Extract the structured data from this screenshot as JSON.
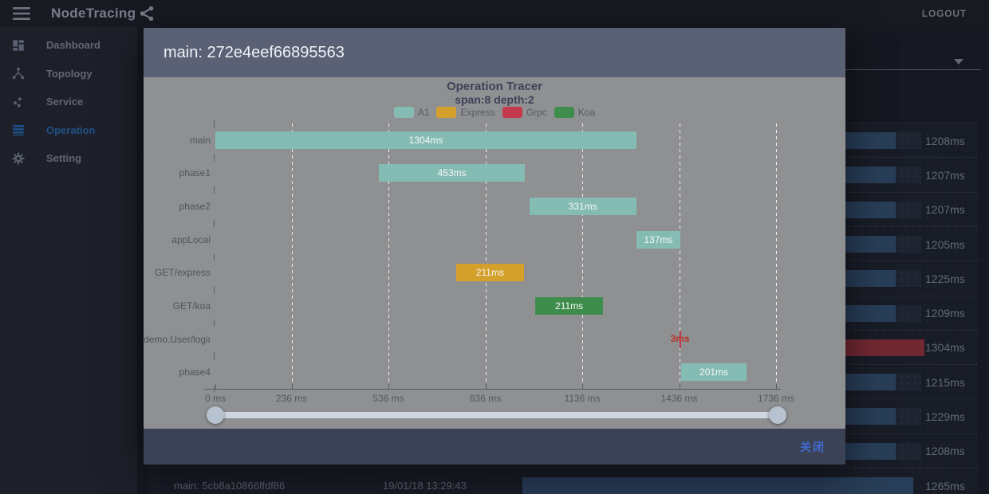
{
  "topbar": {
    "title": "NodeTracing",
    "logout_label": "LOGOUT"
  },
  "sidebar": {
    "items": [
      {
        "id": "dashboard",
        "label": "Dashboard",
        "active": false
      },
      {
        "id": "topology",
        "label": "Topology",
        "active": false
      },
      {
        "id": "service",
        "label": "Service",
        "active": false
      },
      {
        "id": "operation",
        "label": "Operation",
        "active": true
      },
      {
        "id": "setting",
        "label": "Setting",
        "active": false
      }
    ]
  },
  "colors": {
    "accent_blue": "#2d7dd2",
    "bar_blue": "#3d5d84",
    "bar_red": "#b23b47",
    "close_blue": "#3f6cd6"
  },
  "operation_list": {
    "rows": [
      {
        "time": "1208ms",
        "color": "blue"
      },
      {
        "time": "1207ms",
        "color": "blue"
      },
      {
        "time": "1207ms",
        "color": "blue"
      },
      {
        "time": "1205ms",
        "color": "blue"
      },
      {
        "time": "1225ms",
        "color": "blue"
      },
      {
        "time": "1209ms",
        "color": "blue"
      },
      {
        "time": "1304ms",
        "color": "red"
      },
      {
        "time": "1215ms",
        "color": "blue"
      },
      {
        "time": "1229ms",
        "color": "blue"
      },
      {
        "time": "1208ms",
        "color": "blue"
      },
      {
        "time": "1265ms",
        "color": "blue",
        "name": "main: 5cb8a10866ffdf86",
        "timestamp": "19/01/18 13:29:43"
      }
    ]
  },
  "modal": {
    "title": "main: 272e4eef66895563",
    "close_label": "关闭"
  },
  "chart_data": {
    "type": "bar",
    "variant": "gantt-span-tracer",
    "title": "Operation Tracer",
    "subtitle": "span:8 depth:2",
    "legend_position": "top",
    "grid": "dashed-vertical",
    "legend": [
      {
        "name": "A1",
        "color": "#84bcb4"
      },
      {
        "name": "Express",
        "color": "#d4a02b"
      },
      {
        "name": "Grpc",
        "color": "#c4394b"
      },
      {
        "name": "Koa",
        "color": "#3f8d4d"
      }
    ],
    "categories": [
      "main",
      "phase1",
      "phase2",
      "appLocal",
      "GET/express",
      "GET/koa",
      "demo.User/login",
      "phase4"
    ],
    "spans": [
      {
        "label": "main",
        "series": "A1",
        "start_ms": 0,
        "duration_ms": 1304,
        "text": "1304ms"
      },
      {
        "label": "phase1",
        "series": "A1",
        "start_ms": 506,
        "duration_ms": 453,
        "text": "453ms"
      },
      {
        "label": "phase2",
        "series": "A1",
        "start_ms": 972,
        "duration_ms": 331,
        "text": "331ms"
      },
      {
        "label": "appLocal",
        "series": "A1",
        "start_ms": 1303,
        "duration_ms": 137,
        "text": "137ms"
      },
      {
        "label": "GET/express",
        "series": "Express",
        "start_ms": 745,
        "duration_ms": 211,
        "text": "211ms"
      },
      {
        "label": "GET/koa",
        "series": "Koa",
        "start_ms": 990,
        "duration_ms": 211,
        "text": "211ms"
      },
      {
        "label": "demo.User/login",
        "series": "Grpc",
        "start_ms": 1436,
        "duration_ms": 3,
        "text": "3ms",
        "text_outside": true
      },
      {
        "label": "phase4",
        "series": "A1",
        "start_ms": 1443,
        "duration_ms": 201,
        "text": "201ms"
      }
    ],
    "x_ticks": [
      {
        "value": 0,
        "label": "0 ms"
      },
      {
        "value": 236,
        "label": "236 ms"
      },
      {
        "value": 536,
        "label": "536 ms"
      },
      {
        "value": 836,
        "label": "836 ms"
      },
      {
        "value": 1136,
        "label": "1136 ms"
      },
      {
        "value": 1436,
        "label": "1436 ms"
      },
      {
        "value": 1736,
        "label": "1736 ms"
      }
    ],
    "xlim": [
      0,
      1736
    ]
  }
}
